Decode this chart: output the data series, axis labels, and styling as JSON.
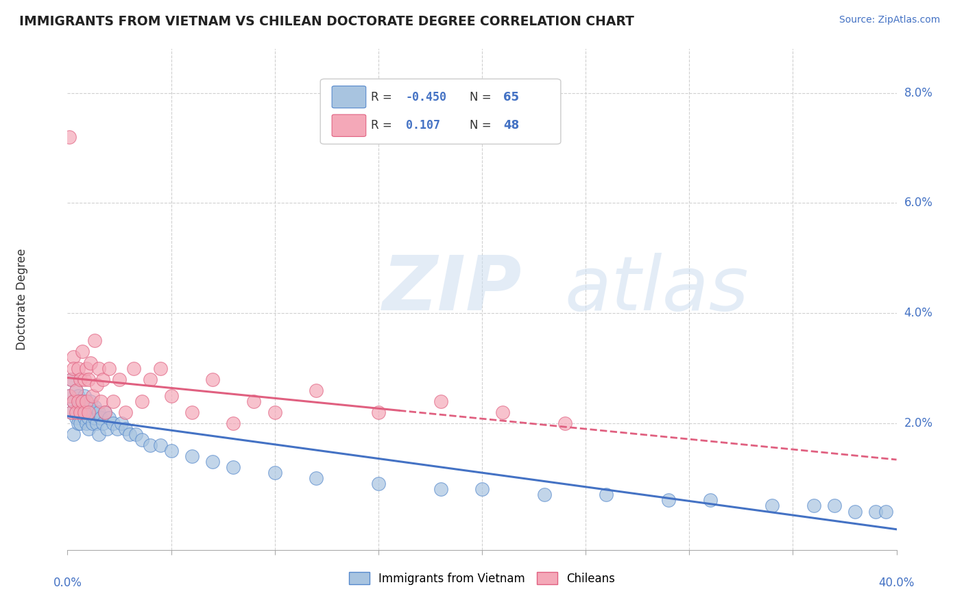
{
  "title": "IMMIGRANTS FROM VIETNAM VS CHILEAN DOCTORATE DEGREE CORRELATION CHART",
  "source": "Source: ZipAtlas.com",
  "ylabel": "Doctorate Degree",
  "ytick_labels": [
    "2.0%",
    "4.0%",
    "6.0%",
    "8.0%"
  ],
  "ytick_values": [
    0.02,
    0.04,
    0.06,
    0.08
  ],
  "xlim": [
    0.0,
    0.4
  ],
  "ylim": [
    -0.003,
    0.088
  ],
  "color_vietnam": "#a8c4e0",
  "color_vietnam_edge": "#5588cc",
  "color_chilean": "#f4a8b8",
  "color_chilean_edge": "#e06080",
  "color_text_blue": "#4472c4",
  "background_color": "#ffffff",
  "grid_color": "#d0d0d0",
  "vietnam_x": [
    0.001,
    0.002,
    0.002,
    0.003,
    0.003,
    0.004,
    0.004,
    0.005,
    0.005,
    0.005,
    0.006,
    0.006,
    0.006,
    0.007,
    0.007,
    0.008,
    0.008,
    0.008,
    0.009,
    0.009,
    0.01,
    0.01,
    0.01,
    0.011,
    0.011,
    0.012,
    0.012,
    0.013,
    0.013,
    0.014,
    0.015,
    0.015,
    0.016,
    0.017,
    0.018,
    0.019,
    0.02,
    0.022,
    0.024,
    0.026,
    0.028,
    0.03,
    0.033,
    0.036,
    0.04,
    0.045,
    0.05,
    0.06,
    0.07,
    0.08,
    0.1,
    0.12,
    0.15,
    0.18,
    0.2,
    0.23,
    0.26,
    0.29,
    0.31,
    0.34,
    0.36,
    0.37,
    0.38,
    0.39,
    0.395
  ],
  "vietnam_y": [
    0.025,
    0.022,
    0.028,
    0.018,
    0.024,
    0.021,
    0.026,
    0.02,
    0.023,
    0.025,
    0.022,
    0.024,
    0.02,
    0.022,
    0.024,
    0.021,
    0.023,
    0.025,
    0.02,
    0.022,
    0.021,
    0.023,
    0.019,
    0.022,
    0.024,
    0.02,
    0.022,
    0.021,
    0.023,
    0.02,
    0.022,
    0.018,
    0.021,
    0.02,
    0.022,
    0.019,
    0.021,
    0.02,
    0.019,
    0.02,
    0.019,
    0.018,
    0.018,
    0.017,
    0.016,
    0.016,
    0.015,
    0.014,
    0.013,
    0.012,
    0.011,
    0.01,
    0.009,
    0.008,
    0.008,
    0.007,
    0.007,
    0.006,
    0.006,
    0.005,
    0.005,
    0.005,
    0.004,
    0.004,
    0.004
  ],
  "chilean_x": [
    0.001,
    0.001,
    0.002,
    0.002,
    0.003,
    0.003,
    0.003,
    0.004,
    0.004,
    0.005,
    0.005,
    0.006,
    0.006,
    0.007,
    0.007,
    0.008,
    0.008,
    0.009,
    0.009,
    0.01,
    0.01,
    0.011,
    0.012,
    0.013,
    0.014,
    0.015,
    0.016,
    0.017,
    0.018,
    0.02,
    0.022,
    0.025,
    0.028,
    0.032,
    0.036,
    0.04,
    0.045,
    0.05,
    0.06,
    0.07,
    0.08,
    0.09,
    0.1,
    0.12,
    0.15,
    0.18,
    0.21,
    0.24
  ],
  "chilean_y": [
    0.072,
    0.025,
    0.028,
    0.022,
    0.032,
    0.024,
    0.03,
    0.026,
    0.022,
    0.03,
    0.024,
    0.028,
    0.022,
    0.033,
    0.024,
    0.028,
    0.022,
    0.03,
    0.024,
    0.028,
    0.022,
    0.031,
    0.025,
    0.035,
    0.027,
    0.03,
    0.024,
    0.028,
    0.022,
    0.03,
    0.024,
    0.028,
    0.022,
    0.03,
    0.024,
    0.028,
    0.03,
    0.025,
    0.022,
    0.028,
    0.02,
    0.024,
    0.022,
    0.026,
    0.022,
    0.024,
    0.022,
    0.02
  ],
  "legend_items": [
    {
      "color": "#a8c4e0",
      "edge": "#5588cc",
      "r": "-0.450",
      "n": "65"
    },
    {
      "color": "#f4a8b8",
      "edge": "#e06080",
      "r": "0.107",
      "n": "48"
    }
  ]
}
